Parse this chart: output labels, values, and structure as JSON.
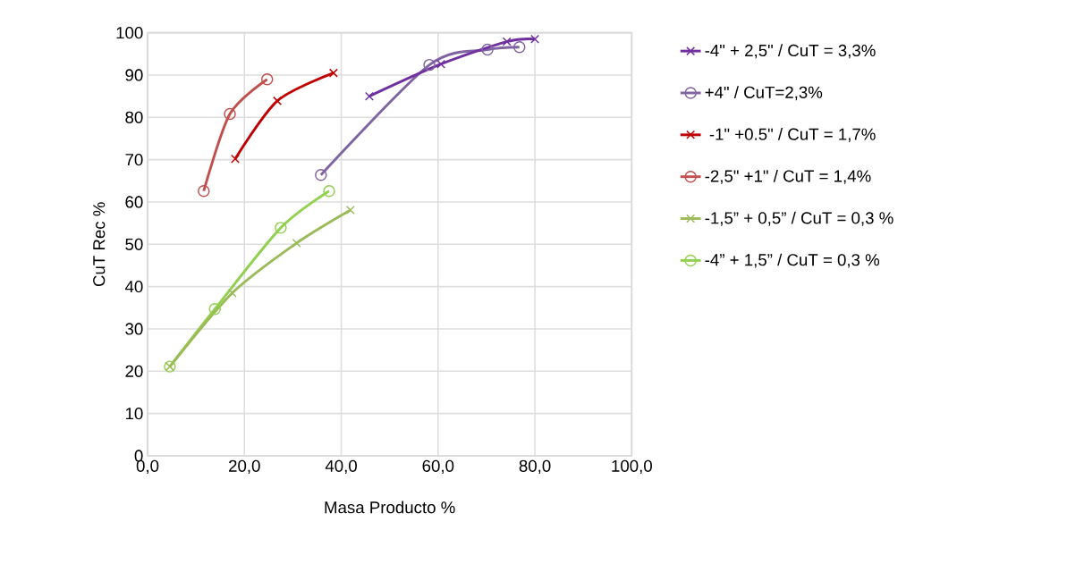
{
  "chart_data": {
    "type": "line",
    "xlabel": "Masa Producto %",
    "ylabel": "CuT Rec %",
    "xlim": [
      0,
      100
    ],
    "ylim": [
      0,
      100
    ],
    "xticks": [
      {
        "value": 0,
        "label": "0,0"
      },
      {
        "value": 20,
        "label": "20,0"
      },
      {
        "value": 40,
        "label": "40,0"
      },
      {
        "value": 60,
        "label": "60,0"
      },
      {
        "value": 80,
        "label": "80,0"
      },
      {
        "value": 100,
        "label": "100,0"
      }
    ],
    "yticks": [
      0,
      10,
      20,
      30,
      40,
      50,
      60,
      70,
      80,
      90,
      100
    ],
    "grid": true,
    "legend": "right",
    "line_style": "solid",
    "series": [
      {
        "name": "-4\" + 2,5\" / CuT = 3,3%",
        "color": "#7030a0",
        "marker": "cross",
        "x": [
          45.8,
          60.6,
          74.2,
          80.0
        ],
        "values": [
          85.0,
          92.6,
          97.9,
          98.5
        ]
      },
      {
        "name": "+4\"  / CuT=2,3%",
        "color": "#8064a2",
        "marker": "circle",
        "x": [
          35.8,
          58.2,
          70.2,
          76.8
        ],
        "values": [
          66.4,
          92.4,
          96.0,
          96.6
        ]
      },
      {
        "name": " -1\" +0.5\" / CuT = 1,7%",
        "color": "#c00000",
        "marker": "cross",
        "x": [
          18.1,
          26.8,
          38.4
        ],
        "values": [
          70.2,
          83.9,
          90.5
        ]
      },
      {
        "name": "-2,5\" +1\" / CuT = 1,4%",
        "color": "#c0504d",
        "marker": "circle",
        "x": [
          11.6,
          17.0,
          24.7
        ],
        "values": [
          62.6,
          80.8,
          89.0
        ]
      },
      {
        "name": "-1,5” + 0,5” /  CuT =  0,3 %",
        "color": "#9bbb59",
        "marker": "cross",
        "x": [
          4.6,
          17.5,
          30.8,
          41.9
        ],
        "values": [
          21.1,
          38.5,
          50.3,
          58.1
        ]
      },
      {
        "name": "-4” + 1,5” /  CuT =  0,3 %",
        "color": "#92d050",
        "marker": "circle",
        "x": [
          4.6,
          13.9,
          27.5,
          37.5
        ],
        "values": [
          21.1,
          34.7,
          53.9,
          62.6
        ]
      }
    ]
  }
}
